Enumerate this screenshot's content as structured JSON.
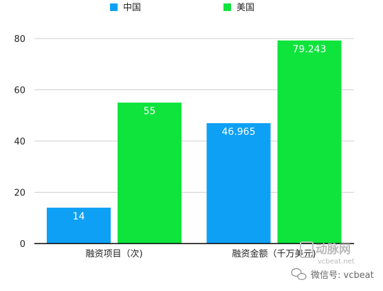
{
  "chart_data": {
    "type": "bar",
    "categories": [
      "融资项目（次)",
      "融资金额（千万美元)"
    ],
    "series": [
      {
        "name": "中国",
        "values": [
          14,
          46.965
        ],
        "labels": [
          "14",
          "46.965"
        ],
        "color": "#0ea0f5"
      },
      {
        "name": "美国",
        "values": [
          55,
          79.243
        ],
        "labels": [
          "55",
          "79.243"
        ],
        "color": "#0ee43c"
      }
    ],
    "title": "",
    "xlabel": "",
    "ylabel": "",
    "ylim": [
      0,
      80
    ],
    "yticks": [
      "0",
      "20",
      "40",
      "60",
      "80"
    ],
    "grid": true,
    "legend_position": "top"
  },
  "watermark": {
    "brand_cn": "动脉网",
    "brand_url": "vcbeat.net",
    "wechat_text": "微信号: vcbeat"
  },
  "colors": {
    "grid": "#cfcfcf",
    "axis": "#000000",
    "watermark": "#b9b9b9"
  }
}
